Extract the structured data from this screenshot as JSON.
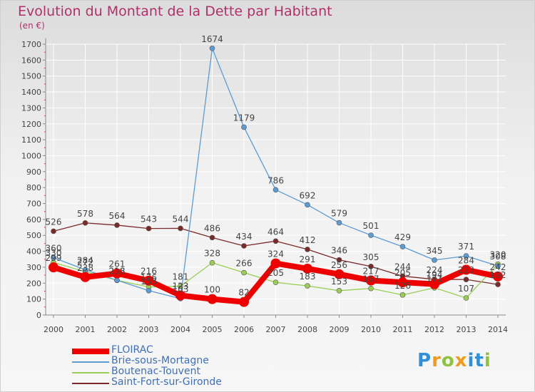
{
  "title": "Evolution du Montant de la Dette par Habitant",
  "unit_label": "(en €)",
  "logo_text": "Proxiti",
  "colors": {
    "title": "#b0306a",
    "axis": "#8a8a8a",
    "grid": "#ffffff",
    "tick_label": "#444444",
    "legend_text": "#3f6fb5"
  },
  "chart_data": {
    "type": "line",
    "title": "Evolution du Montant de la Dette par Habitant",
    "ylabel": "(en €)",
    "xlabel": "",
    "ylim": [
      0,
      1700
    ],
    "y_ticks": [
      0,
      100,
      200,
      300,
      400,
      500,
      600,
      700,
      800,
      900,
      1000,
      1100,
      1200,
      1300,
      1400,
      1500,
      1600,
      1700
    ],
    "grid": true,
    "legend_position": "bottom-left",
    "x": [
      "2000",
      "2001",
      "2002",
      "2003",
      "2004",
      "2005",
      "2006",
      "2007",
      "2008",
      "2009",
      "2010",
      "2011",
      "2012",
      "2013",
      "2014"
    ],
    "series": [
      {
        "name": "FLOIRAC",
        "color": "#ee0000",
        "line_width": 8,
        "marker_radius": 7,
        "values": [
          299,
          238,
          261,
          216,
          123,
          100,
          82,
          324,
          291,
          256,
          217,
          205,
          194,
          284,
          242
        ],
        "labels": [
          "299",
          "238",
          "261",
          "216",
          "123",
          "100",
          "82",
          "324",
          "291",
          "256",
          "217",
          "205",
          "194",
          "284",
          "242"
        ]
      },
      {
        "name": "Brie-sous-Mortagne",
        "color": "#5d9bd3",
        "line_width": 1.3,
        "marker_radius": 3.5,
        "values": [
          360,
          284,
          218,
          153,
          103,
          1674,
          1179,
          786,
          692,
          579,
          501,
          429,
          345,
          371,
          308
        ],
        "labels": [
          "360",
          "284",
          "218",
          "153",
          "103",
          "1674",
          "1179",
          "786",
          "692",
          "579",
          "501",
          "429",
          "345",
          "371",
          "308"
        ]
      },
      {
        "name": "Boutenac-Touvent",
        "color": "#9acd55",
        "line_width": 1.3,
        "marker_radius": 3.5,
        "values": [
          330,
          272,
          218,
          176,
          181,
          328,
          266,
          205,
          183,
          153,
          167,
          126,
          171,
          107,
          320
        ],
        "labels": [
          "330",
          "272",
          "218",
          "176",
          "181",
          "328",
          "266",
          "205",
          "183",
          "153",
          "167",
          "126",
          "171",
          "107",
          "320"
        ]
      },
      {
        "name": "Saint-Fort-sur-Gironde",
        "color": "#7a2a2a",
        "line_width": 1.3,
        "marker_radius": 3.5,
        "values": [
          526,
          578,
          564,
          543,
          544,
          486,
          434,
          464,
          412,
          346,
          305,
          244,
          224,
          223,
          192
        ],
        "labels": [
          "526",
          "578",
          "564",
          "543",
          "544",
          "486",
          "434",
          "464",
          "412",
          "346",
          "305",
          "244",
          "224",
          "223",
          "192"
        ]
      }
    ]
  }
}
